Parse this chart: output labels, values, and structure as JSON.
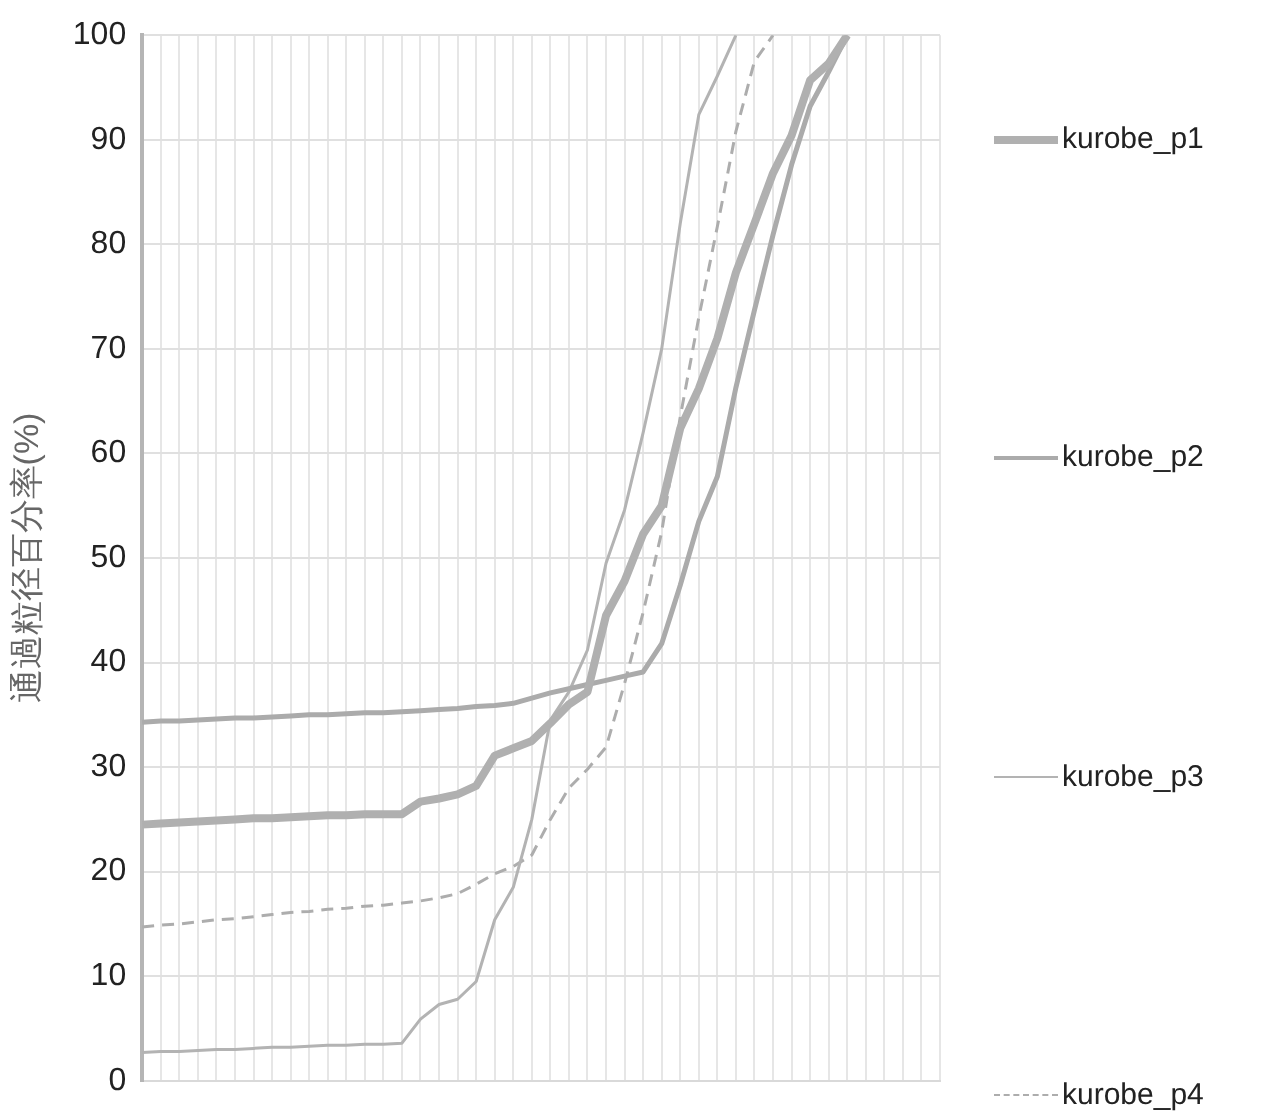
{
  "chart_data": {
    "type": "line",
    "ylabel": "通過粒径百分率(%)",
    "categories": [
      null,
      null,
      null,
      null,
      null,
      null,
      null,
      null,
      null,
      null,
      null,
      null,
      null,
      null,
      null,
      null,
      null,
      null,
      null,
      null,
      null,
      null,
      null,
      null,
      null,
      null,
      null,
      null,
      null,
      null,
      null,
      null,
      null,
      null,
      null,
      null,
      null,
      null,
      null,
      null,
      null,
      null,
      null,
      null
    ],
    "series": [
      {
        "name": "kurobe_p1",
        "color": "#b0b0b0",
        "line_style": "solid",
        "values": [
          24.5,
          24.6,
          24.7,
          24.8,
          24.9,
          25.0,
          25.1,
          25.1,
          25.2,
          25.3,
          25.4,
          25.4,
          25.5,
          25.5,
          25.5,
          26.7,
          27.0,
          27.4,
          28.2,
          31.1,
          31.8,
          32.5,
          34.2,
          36,
          37.2,
          44.5,
          47.8,
          52.3,
          55,
          62.4,
          66.2,
          71,
          77.3,
          82,
          86.8,
          90.4,
          95.7,
          97.3,
          100,
          null,
          null,
          null,
          null,
          null
        ]
      },
      {
        "name": "kurobe_p2",
        "color": "#ababab",
        "line_style": "solid",
        "values": [
          34.3,
          34.4,
          34.4,
          34.5,
          34.6,
          34.7,
          34.7,
          34.8,
          34.9,
          35.0,
          35.0,
          35.1,
          35.2,
          35.2,
          35.3,
          35.4,
          35.5,
          35.6,
          35.8,
          35.9,
          36.1,
          36.6,
          37.1,
          37.5,
          37.9,
          38.3,
          38.7,
          39.1,
          41.8,
          47.4,
          53.5,
          57.8,
          66.3,
          73.7,
          80.9,
          87.6,
          93.2,
          96.5,
          100,
          null,
          null,
          null,
          null,
          null
        ]
      },
      {
        "name": "kurobe_p3",
        "color": "#b3b3b3",
        "line_style": "solid",
        "values": [
          2.7,
          2.8,
          2.8,
          2.9,
          3.0,
          3.0,
          3.1,
          3.2,
          3.2,
          3.3,
          3.4,
          3.4,
          3.5,
          3.5,
          3.6,
          5.9,
          7.3,
          7.8,
          9.5,
          15.4,
          18.5,
          25,
          34.5,
          37.2,
          41.2,
          49.5,
          54.6,
          62,
          70,
          82,
          92.4,
          96.1,
          100,
          null,
          null,
          null,
          null,
          null,
          null,
          null,
          null,
          null,
          null,
          null
        ]
      },
      {
        "name": "kurobe_p4",
        "color": "#adadad",
        "line_style": "dashed",
        "values": [
          14.7,
          14.9,
          15.0,
          15.2,
          15.4,
          15.5,
          15.7,
          15.9,
          16.1,
          16.2,
          16.4,
          16.5,
          16.7,
          16.8,
          17.0,
          17.2,
          17.5,
          17.9,
          18.8,
          19.8,
          20.5,
          21.6,
          25,
          28,
          29.8,
          31.9,
          38,
          44.8,
          52.5,
          63.5,
          73,
          81.7,
          90.8,
          97.5,
          100,
          null,
          null,
          null,
          null,
          null,
          null,
          null,
          null,
          null
        ]
      }
    ],
    "ylim": [
      0,
      100
    ],
    "yticks": [
      0,
      10,
      20,
      30,
      40,
      50,
      60,
      70,
      80,
      90,
      100
    ],
    "grid": true,
    "legend": "right",
    "tick_labels": "y",
    "marker": "none"
  }
}
